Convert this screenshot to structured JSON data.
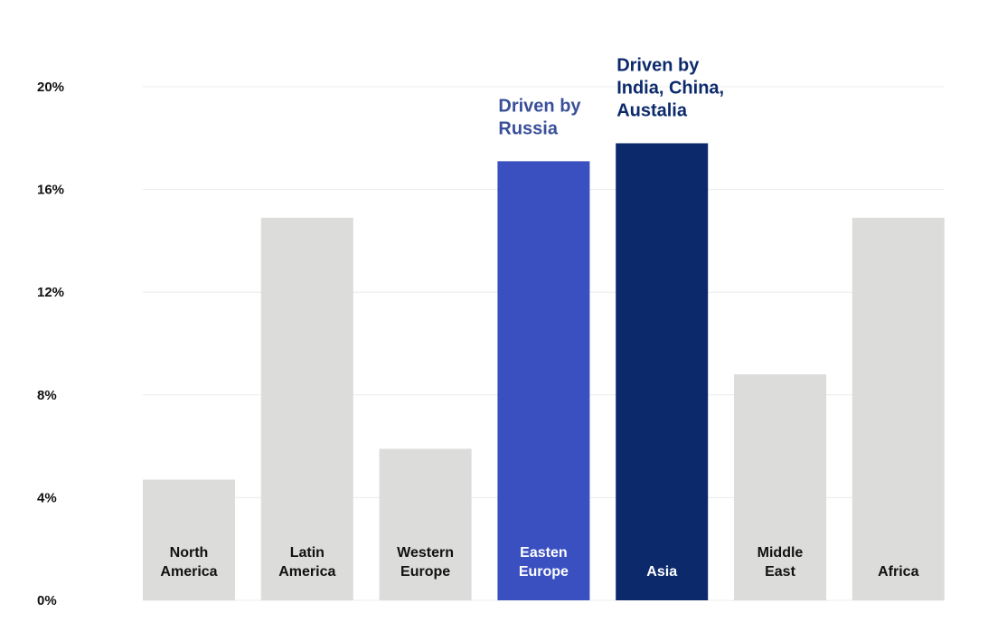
{
  "chart_data": {
    "type": "bar",
    "categories": [
      [
        "North",
        "America"
      ],
      [
        "Latin",
        "America"
      ],
      [
        "Western",
        "Europe"
      ],
      [
        "Easten",
        "Europe"
      ],
      [
        "Asia"
      ],
      [
        "Middle",
        "East"
      ],
      [
        "Africa"
      ]
    ],
    "values": [
      4.7,
      14.9,
      5.9,
      17.1,
      17.8,
      8.8,
      14.9
    ],
    "bar_colors": [
      "#dcdcdb",
      "#dcdcdb",
      "#dcdcdb",
      "#3a50c0",
      "#0c2a6b",
      "#dcdcdb",
      "#dcdcdb"
    ],
    "label_colors": [
      "#111111",
      "#111111",
      "#111111",
      "#ffffff",
      "#ffffff",
      "#111111",
      "#111111"
    ],
    "yticks": [
      "0%",
      "4%",
      "8%",
      "12%",
      "16%",
      "20%"
    ],
    "ylim": [
      0,
      20
    ],
    "grid": true,
    "title": "",
    "xlabel": "",
    "ylabel": "",
    "annotations": [
      {
        "category_index": 3,
        "lines": [
          "Driven by",
          "Russia"
        ],
        "color": "#3a4f9a"
      },
      {
        "category_index": 4,
        "lines": [
          "Driven by",
          "India, China,",
          "Austalia"
        ],
        "color": "#0c2a6b"
      }
    ]
  }
}
